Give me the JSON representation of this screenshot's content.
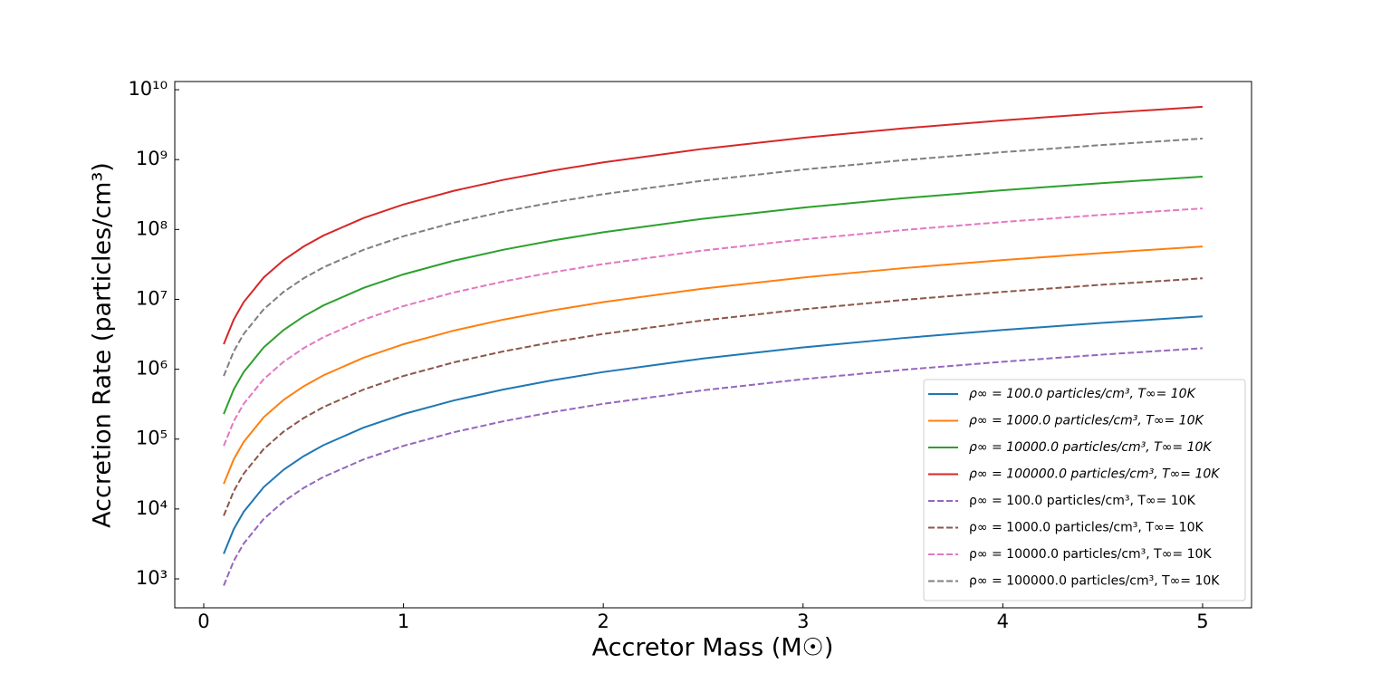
{
  "chart_data": {
    "type": "line",
    "xlabel": "Accretor Mass (M☉)",
    "ylabel": "Accretion Rate (particles/cm³)",
    "x": [
      0.1,
      0.15,
      0.2,
      0.3,
      0.4,
      0.5,
      0.6,
      0.8,
      1.0,
      1.25,
      1.5,
      1.75,
      2,
      2.5,
      3,
      3.5,
      4,
      4.5,
      5
    ],
    "xlim": [
      -0.145,
      5.245
    ],
    "xticks": [
      0,
      1,
      2,
      3,
      4,
      5
    ],
    "ylim": [
      385,
      13100000000
    ],
    "yscale": "log",
    "yticks": [
      {
        "value": 1000,
        "label": "10³"
      },
      {
        "value": 10000,
        "label": "10⁴"
      },
      {
        "value": 100000,
        "label": "10⁵"
      },
      {
        "value": 1000000,
        "label": "10⁶"
      },
      {
        "value": 10000000,
        "label": "10⁷"
      },
      {
        "value": 100000000,
        "label": "10⁸"
      },
      {
        "value": 1000000000,
        "label": "10⁹"
      },
      {
        "value": 10000000000,
        "label": "10¹⁰"
      }
    ],
    "legend": "lower right",
    "series": [
      {
        "name": "ρ∞ =  100.0 particles/cm³, T∞= 10K",
        "color": "#1f77b4",
        "linestyle": "solid",
        "values": [
          2280,
          5130,
          9120,
          20520,
          36480,
          57000,
          82080,
          145920,
          228000,
          356250,
          513000,
          698250,
          912000,
          1425000,
          2052000,
          2793000,
          3648000,
          4617000,
          5700000
        ]
      },
      {
        "name": "ρ∞ =  1000.0 particles/cm³, T∞= 10K",
        "color": "#ff7f0e",
        "linestyle": "solid",
        "values": [
          22800,
          51300,
          91200,
          205200,
          364800,
          570000,
          820800,
          1459200,
          2280000,
          3562500,
          5130000,
          6982500,
          9120000,
          14250000,
          20520000,
          27930000,
          36480000,
          46170000,
          57000000
        ]
      },
      {
        "name": "ρ∞ =  10000.0 particles/cm³, T∞= 10K",
        "color": "#2ca02c",
        "linestyle": "solid",
        "values": [
          228000,
          513000,
          912000,
          2052000,
          3648000,
          5700000,
          8208000,
          14592000,
          22800000,
          35625000,
          51300000,
          69825000,
          91200000,
          142500000,
          205200000,
          279300000,
          364800000,
          461700000,
          570000000
        ]
      },
      {
        "name": "ρ∞ =  100000.0 particles/cm³, T∞= 10K",
        "color": "#d62728",
        "linestyle": "solid",
        "values": [
          2280000,
          5130000,
          9120000,
          20520000,
          36480000,
          57000000,
          82080000,
          145920000,
          228000000,
          356250000,
          513000000,
          698250000,
          912000000,
          1425000000,
          2052000000,
          2793000000,
          3648000000,
          4617000000,
          5700000000
        ]
      },
      {
        "name": "ρ∞ =  100.0 particles/cm³, T∞= 10K",
        "color": "#9467bd",
        "linestyle": "dashed",
        "values": [
          800,
          1800,
          3200,
          7200,
          12800,
          20000,
          28800,
          51200,
          80000,
          125000,
          180000,
          245000,
          320000,
          500000,
          720000,
          980000,
          1280000,
          1620000,
          2000000
        ]
      },
      {
        "name": "ρ∞ =  1000.0 particles/cm³, T∞= 10K",
        "color": "#8c564b",
        "linestyle": "dashed",
        "values": [
          8000,
          18000,
          32000,
          72000,
          128000,
          200000,
          288000,
          512000,
          800000,
          1250000,
          1800000,
          2450000,
          3200000,
          5000000,
          7200000,
          9800000,
          12800000,
          16200000,
          20000000
        ]
      },
      {
        "name": "ρ∞ =  10000.0 particles/cm³, T∞= 10K",
        "color": "#e377c2",
        "linestyle": "dashed",
        "values": [
          80000,
          180000,
          320000,
          720000,
          1280000,
          2000000,
          2880000,
          5120000,
          8000000,
          12500000,
          18000000,
          24500000,
          32000000,
          50000000,
          72000000,
          98000000,
          128000000,
          162000000,
          200000000
        ]
      },
      {
        "name": "ρ∞ =  100000.0 particles/cm³, T∞= 10K",
        "color": "#7f7f7f",
        "linestyle": "dashed",
        "values": [
          800000,
          1800000,
          3200000,
          7200000,
          12800000,
          20000000,
          28800000,
          51200000,
          80000000,
          125000000,
          180000000,
          245000000,
          320000000,
          500000000,
          720000000,
          980000000,
          1280000000,
          1620000000,
          2000000000
        ]
      }
    ]
  }
}
